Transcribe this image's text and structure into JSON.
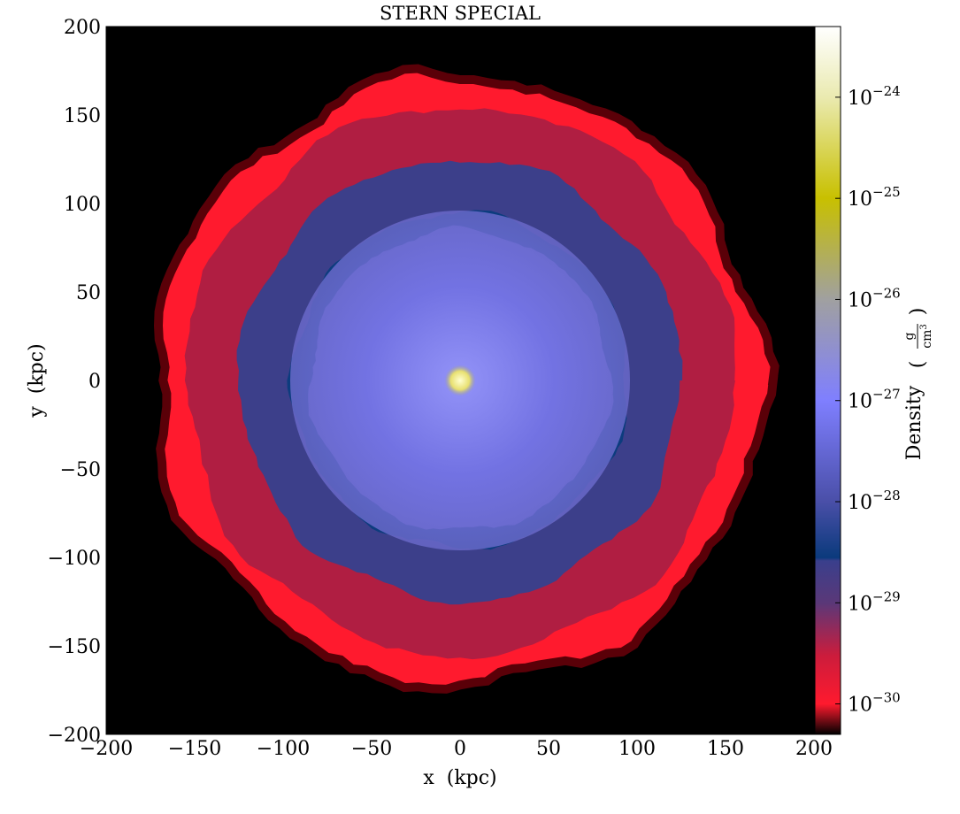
{
  "chart_data": {
    "type": "heatmap",
    "title": "STERN SPECIAL",
    "xlabel": "x  (kpc)",
    "ylabel": "y  (kpc)",
    "xlim": [
      -200,
      200
    ],
    "ylim": [
      -200,
      200
    ],
    "x_ticks": [
      -200,
      -150,
      -100,
      -50,
      0,
      50,
      100,
      150,
      200
    ],
    "y_ticks": [
      -200,
      -150,
      -100,
      -50,
      0,
      50,
      100,
      150,
      200
    ],
    "x_tick_labels": [
      "−200",
      "−150",
      "−100",
      "−50",
      "0",
      "50",
      "100",
      "150",
      "200"
    ],
    "y_tick_labels": [
      "−200",
      "−150",
      "−100",
      "−50",
      "0",
      "50",
      "100",
      "150",
      "200"
    ],
    "colorbar": {
      "label": "Density",
      "unit_numerator": "g",
      "unit_denominator": "cm",
      "unit_denominator_exponent": "3",
      "scale": "log",
      "range": [
        5e-31,
        5e-24
      ],
      "ticks": [
        {
          "value": 1e-24,
          "base": "10",
          "exponent": "−24"
        },
        {
          "value": 1e-25,
          "base": "10",
          "exponent": "−25"
        },
        {
          "value": 1e-26,
          "base": "10",
          "exponent": "−26"
        },
        {
          "value": 1e-27,
          "base": "10",
          "exponent": "−27"
        },
        {
          "value": 1e-28,
          "base": "10",
          "exponent": "−28"
        },
        {
          "value": 1e-29,
          "base": "10",
          "exponent": "−29"
        },
        {
          "value": 1e-30,
          "base": "10",
          "exponent": "−30"
        }
      ],
      "colormap_stops": [
        {
          "value": 5e-31,
          "color": "#000000"
        },
        {
          "value": 1e-30,
          "color": "#ff1a2e"
        },
        {
          "value": 3e-30,
          "color": "#cc1c3c"
        },
        {
          "value": 1e-29,
          "color": "#5a3878"
        },
        {
          "value": 2.6e-29,
          "color": "#3a3f8c"
        },
        {
          "value": 2.8e-29,
          "color": "#0a3a7c"
        },
        {
          "value": 1e-28,
          "color": "#4a4fa8"
        },
        {
          "value": 1e-27,
          "color": "#7f7fff"
        },
        {
          "value": 1e-26,
          "color": "#a0a0a0"
        },
        {
          "value": 1e-25,
          "color": "#c8c000"
        },
        {
          "value": 1e-24,
          "color": "#eaeab0"
        },
        {
          "value": 5e-24,
          "color": "#ffffff"
        }
      ]
    },
    "density_regions": [
      {
        "name": "background",
        "radius_kpc": 200,
        "color": "#000000"
      },
      {
        "name": "outer-shell",
        "radius_kpc": 172,
        "color": "#ff1a2e"
      },
      {
        "name": "shell-interior",
        "radius_kpc": 155,
        "color": "#b01e42"
      },
      {
        "name": "mid-halo",
        "radius_kpc": 125,
        "color": "#3c3f8a"
      },
      {
        "name": "dense-ring",
        "radius_kpc": 95,
        "color": "#0c3c7e"
      },
      {
        "name": "inner-halo",
        "radius_kpc": 85,
        "color": "#6a6ad0"
      },
      {
        "name": "core",
        "radius_kpc": 30,
        "color": "#8a8aff"
      },
      {
        "name": "galaxy-center",
        "radius_kpc": 4,
        "color": "#f0f0a0"
      }
    ]
  }
}
